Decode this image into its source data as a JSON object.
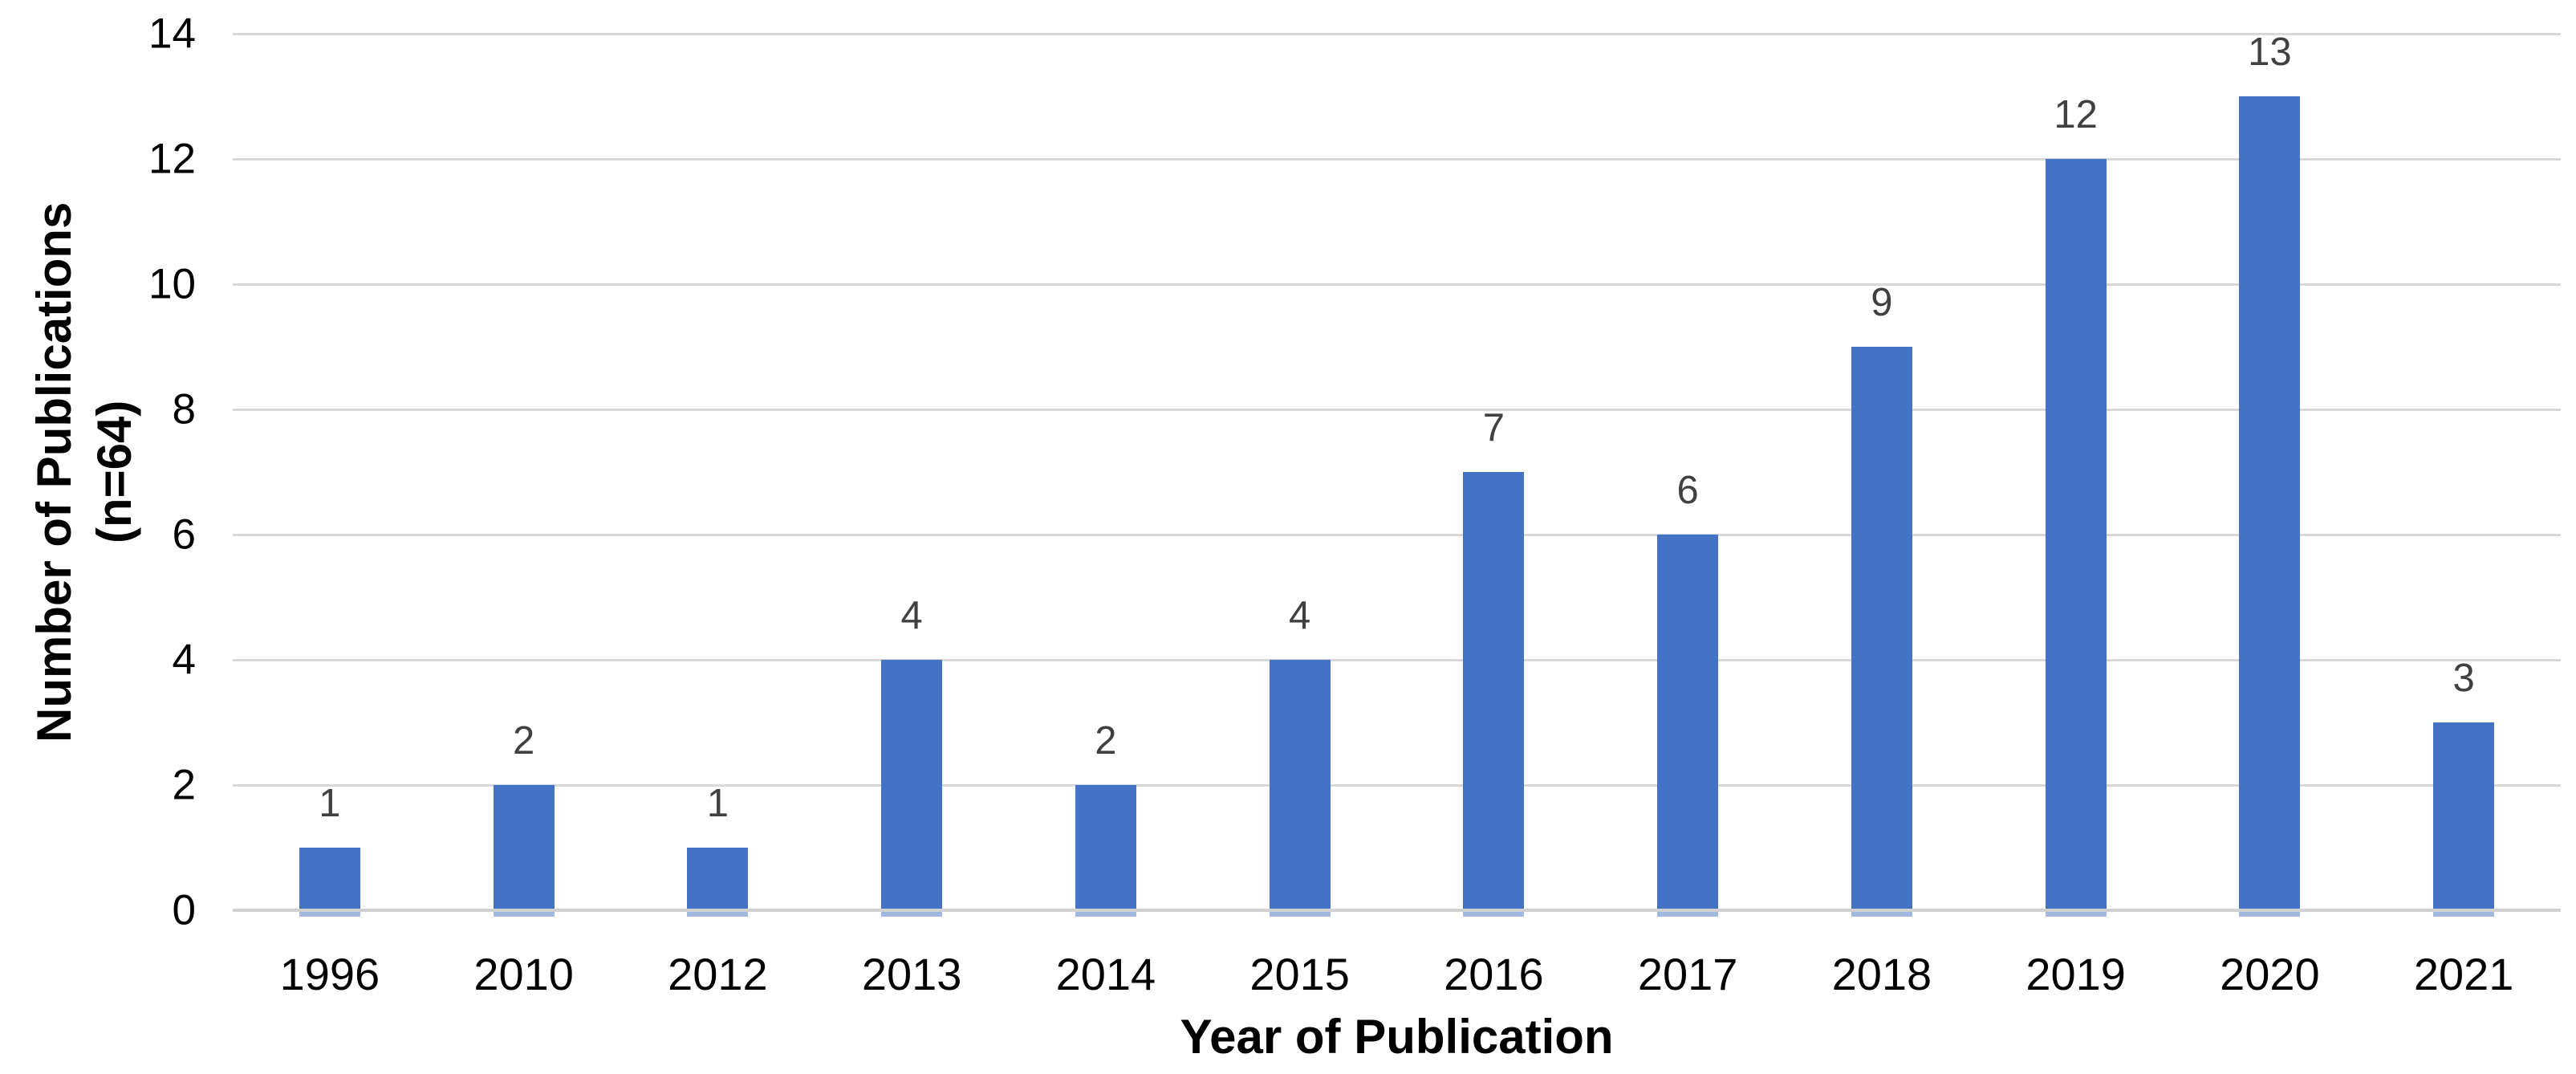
{
  "chart_data": {
    "type": "bar",
    "title": "",
    "categories": [
      "1996",
      "2010",
      "2012",
      "2013",
      "2014",
      "2015",
      "2016",
      "2017",
      "2018",
      "2019",
      "2020",
      "2021"
    ],
    "values": [
      1,
      2,
      1,
      4,
      2,
      4,
      7,
      6,
      9,
      12,
      13,
      3
    ],
    "xlabel": "Year of Publication",
    "ylabel": "Number of Publications (n=64)",
    "ylabel_lines": [
      "Number of Publications",
      "(n=64)"
    ],
    "ylim": [
      0,
      14
    ],
    "yticks": [
      0,
      2,
      4,
      6,
      8,
      10,
      12,
      14
    ],
    "grid": true,
    "legend": "none",
    "data_labels_shown": true,
    "colors": {
      "bar": "#4472C4",
      "bar_foot": "rgba(68,114,196,0.5)",
      "value_label": "#404040",
      "axis_text": "#000000",
      "gridline": "#D9D9D9",
      "axis_line": "#D1D1D1",
      "background": "#FFFFFF"
    }
  }
}
